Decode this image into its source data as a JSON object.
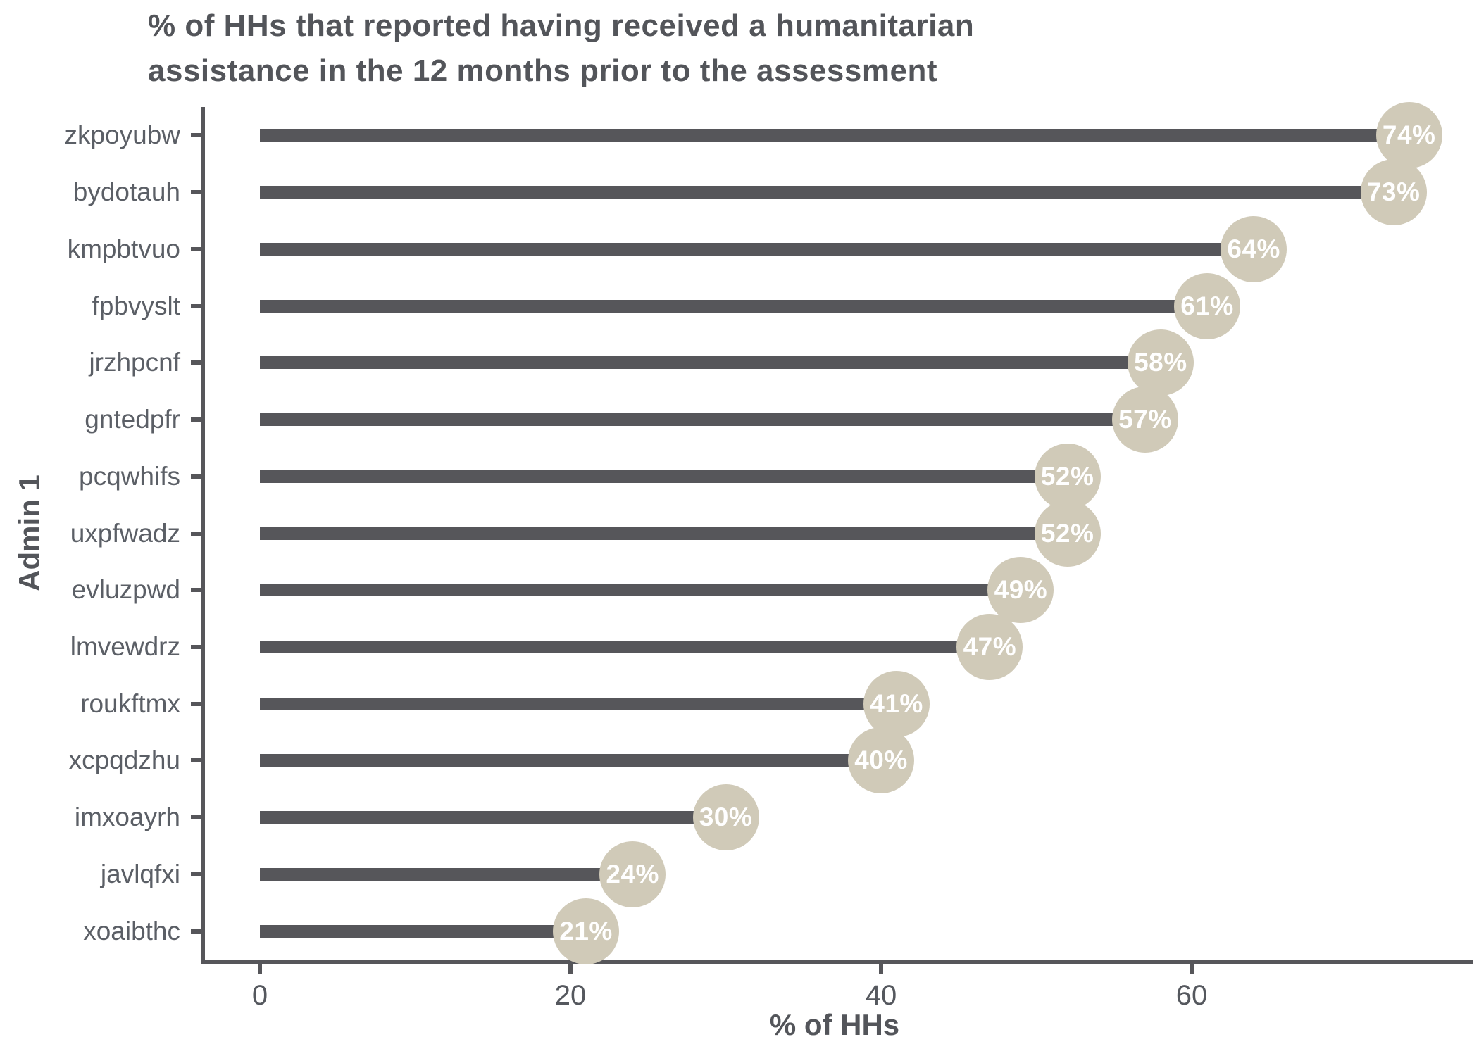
{
  "title_lines": {
    "line1": "% of HHs that reported having received a humanitarian",
    "line2": "assistance in the 12 months prior to the assessment"
  },
  "axes": {
    "x_label": "% of HHs",
    "y_label": "Admin 1",
    "x_tick_labels": [
      "0",
      "20",
      "40",
      "60"
    ]
  },
  "colors": {
    "bar": "#56565A",
    "axis_line": "#56565A",
    "bubble_fill": "#D0CAB8",
    "bubble_text": "#FFFFFF",
    "title_text": "#53555A",
    "category_text": "#5B5F66"
  },
  "chart_data": {
    "type": "bar",
    "orientation": "horizontal_lollipop",
    "title": "% of HHs that reported having received a humanitarian assistance in the 12 months prior to the assessment",
    "xlabel": "% of HHs",
    "ylabel": "Admin 1",
    "categories": [
      "zkpoyubw",
      "bydotauh",
      "kmpbtvuo",
      "fpbvyslt",
      "jrzhpcnf",
      "gntedpfr",
      "pcqwhifs",
      "uxpfwadz",
      "evluzpwd",
      "lmvewdrz",
      "roukftmx",
      "xcpqdzhu",
      "imxoayrh",
      "javlqfxi",
      "xoaibthc"
    ],
    "values": [
      74,
      73,
      64,
      61,
      58,
      57,
      52,
      52,
      49,
      47,
      41,
      40,
      30,
      24,
      21
    ],
    "value_labels": [
      "74%",
      "73%",
      "64%",
      "61%",
      "58%",
      "57%",
      "52%",
      "52%",
      "49%",
      "47%",
      "41%",
      "40%",
      "30%",
      "24%",
      "21%"
    ],
    "x_ticks": [
      0,
      20,
      40,
      60
    ],
    "xlim": [
      0,
      78
    ],
    "grid": false,
    "legend": false
  }
}
